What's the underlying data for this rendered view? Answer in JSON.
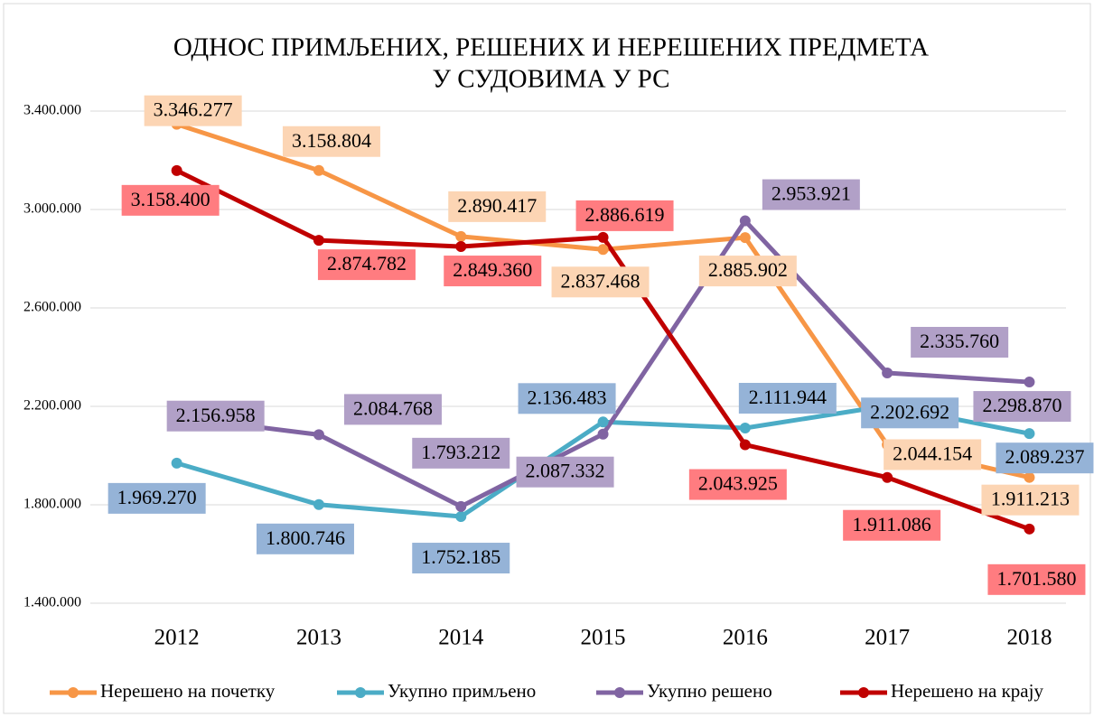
{
  "chart_data": {
    "type": "line",
    "title": [
      "ОДНОС ПРИМЉЕНИХ, РЕШЕНИХ И НЕРЕШЕНИХ ПРЕДМЕТА",
      "У СУДОВИМА У РС"
    ],
    "categories": [
      "2012",
      "2013",
      "2014",
      "2015",
      "2016",
      "2017",
      "2018"
    ],
    "ylim": [
      1400000,
      3400000
    ],
    "yticks": [
      {
        "value": 1400000,
        "label": "1.400.000"
      },
      {
        "value": 1800000,
        "label": "1.800.000"
      },
      {
        "value": 2200000,
        "label": "2.200.000"
      },
      {
        "value": 2600000,
        "label": "2.600.000"
      },
      {
        "value": 3000000,
        "label": "3.000.000"
      },
      {
        "value": 3400000,
        "label": "3.400.000"
      }
    ],
    "grid": true,
    "legend": "bottom",
    "series": [
      {
        "name": "Нерешено на почетку",
        "color": "#f79646",
        "label_color": "#fcd5b4",
        "values": [
          3346277,
          3158804,
          2890417,
          2837468,
          2885902,
          2044154,
          1911213
        ],
        "value_labels": [
          "3.346.277",
          "3.158.804",
          "2.890.417",
          "2.837.468",
          "2.885.902",
          "2.044.154",
          "1.911.213"
        ]
      },
      {
        "name": "Укупно примљено",
        "color": "#4bacc6",
        "label_color": "#95b3d7",
        "values": [
          1969270,
          1800746,
          1752185,
          2136483,
          2111944,
          2202692,
          2089237
        ],
        "value_labels": [
          "1.969.270",
          "1.800.746",
          "1.752.185",
          "2.136.483",
          "2.111.944",
          "2.202.692",
          "2.089.237"
        ]
      },
      {
        "name": "Укупно решено",
        "color": "#8064a2",
        "label_color": "#b1a0c7",
        "values": [
          2156958,
          2084768,
          1793212,
          2087332,
          2953921,
          2335760,
          2298870
        ],
        "value_labels": [
          "2.156.958",
          "2.084.768",
          "1.793.212",
          "2.087.332",
          "2.953.921",
          "2.335.760",
          "2.298.870"
        ]
      },
      {
        "name": "Нерешено на крају",
        "color": "#c00000",
        "label_color": "#ff7c80",
        "values": [
          3158400,
          2874782,
          2849360,
          2886619,
          2043925,
          1911086,
          1701580
        ],
        "value_labels": [
          "3.158.400",
          "2.874.782",
          "2.849.360",
          "2.886.619",
          "2.043.925",
          "1.911.086",
          "1.701.580"
        ]
      }
    ]
  }
}
